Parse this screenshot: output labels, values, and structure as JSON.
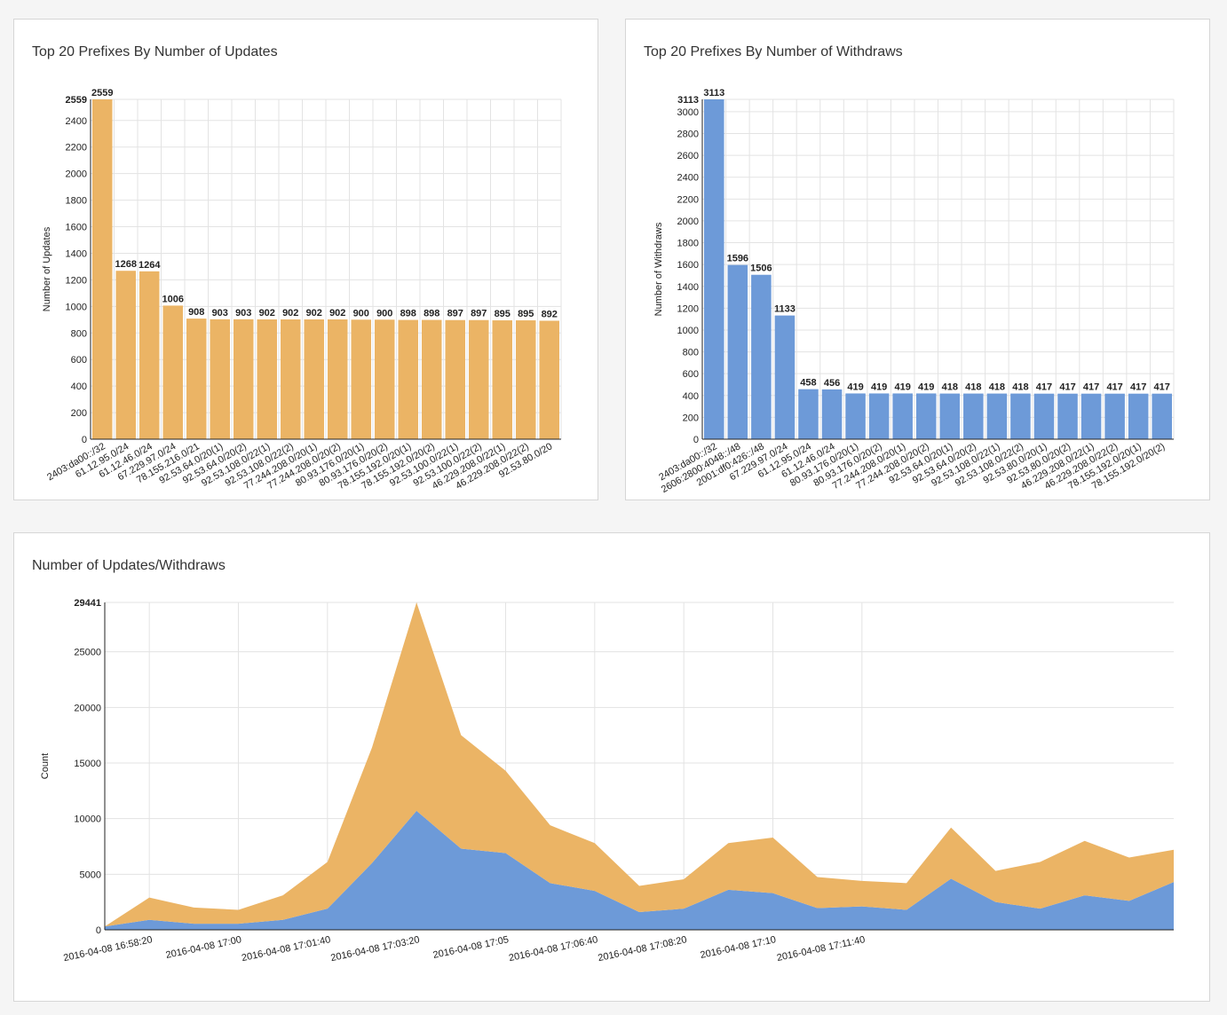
{
  "colors": {
    "updates": "#ebb465",
    "withdraws": "#6d9ad8",
    "grid": "#e3e3e3",
    "axis": "#222222"
  },
  "charts": {
    "updates": {
      "title": "Top 20 Prefixes By Number of Updates",
      "ylabel": "Number of Updates",
      "color_key": "updates",
      "chart_data": {
        "type": "bar",
        "title": "Top 20 Prefixes By Number of Updates",
        "xlabel": "",
        "ylabel": "Number of Updates",
        "ylim": [
          0,
          2559
        ],
        "yticks": [
          0,
          200,
          400,
          600,
          800,
          1000,
          1200,
          1400,
          1600,
          1800,
          2000,
          2200,
          2400,
          2559
        ],
        "categories": [
          "2403:da00::/32",
          "61.12.95.0/24",
          "61.12.46.0/24",
          "67.229.97.0/24",
          "78.155.216.0/21",
          "92.53.64.0/20(1)",
          "92.53.64.0/20(2)",
          "92.53.108.0/22(1)",
          "92.53.108.0/22(2)",
          "77.244.208.0/20(1)",
          "77.244.208.0/20(2)",
          "80.93.176.0/20(1)",
          "80.93.176.0/20(2)",
          "78.155.192.0/20(1)",
          "78.155.192.0/20(2)",
          "92.53.100.0/22(1)",
          "92.53.100.0/22(2)",
          "46.229.208.0/22(1)",
          "46.229.208.0/22(2)",
          "92.53.80.0/20"
        ],
        "values": [
          2559,
          1268,
          1264,
          1006,
          908,
          903,
          903,
          902,
          902,
          902,
          902,
          900,
          900,
          898,
          898,
          897,
          897,
          895,
          895,
          892
        ],
        "grid": true
      }
    },
    "withdraws": {
      "title": "Top 20 Prefixes By Number of Withdraws",
      "ylabel": "Number of Withdraws",
      "color_key": "withdraws",
      "chart_data": {
        "type": "bar",
        "title": "Top 20 Prefixes By Number of Withdraws",
        "xlabel": "",
        "ylabel": "Number of Withdraws",
        "ylim": [
          0,
          3113
        ],
        "yticks": [
          0,
          200,
          400,
          600,
          800,
          1000,
          1200,
          1400,
          1600,
          1800,
          2000,
          2200,
          2400,
          2600,
          2800,
          3000,
          3113
        ],
        "categories": [
          "2403:da00::/32",
          "2606:2800:4048::/48",
          "2001:df0:426::/48",
          "67.229.97.0/24",
          "61.12.95.0/24",
          "61.12.46.0/24",
          "80.93.176.0/20(1)",
          "80.93.176.0/20(2)",
          "77.244.208.0/20(1)",
          "77.244.208.0/20(2)",
          "92.53.64.0/20(1)",
          "92.53.64.0/20(2)",
          "92.53.108.0/22(1)",
          "92.53.108.0/22(2)",
          "92.53.80.0/20(1)",
          "92.53.80.0/20(2)",
          "46.229.208.0/22(1)",
          "46.229.208.0/22(2)",
          "78.155.192.0/20(1)",
          "78.155.192.0/20(2)"
        ],
        "values": [
          3113,
          1596,
          1506,
          1133,
          458,
          456,
          419,
          419,
          419,
          419,
          418,
          418,
          418,
          418,
          417,
          417,
          417,
          417,
          417,
          417
        ],
        "grid": true
      }
    },
    "timeline": {
      "title": "Number of Updates/Withdraws",
      "ylabel": "Count",
      "chart_data": {
        "type": "area",
        "stacked": true,
        "title": "Number of Updates/Withdraws",
        "xlabel": "",
        "ylabel": "Count",
        "ylim": [
          0,
          29441
        ],
        "yticks": [
          0,
          5000,
          10000,
          15000,
          20000,
          25000,
          29441
        ],
        "x": [
          "2016-04-08 16:57:30",
          "2016-04-08 16:58:20",
          "2016-04-08 16:59:10",
          "2016-04-08 17:00:00",
          "2016-04-08 17:00:50",
          "2016-04-08 17:01:40",
          "2016-04-08 17:02:30",
          "2016-04-08 17:03:20",
          "2016-04-08 17:04:10",
          "2016-04-08 17:05:00",
          "2016-04-08 17:05:50",
          "2016-04-08 17:06:40",
          "2016-04-08 17:07:30",
          "2016-04-08 17:08:20",
          "2016-04-08 17:09:10",
          "2016-04-08 17:10:00",
          "2016-04-08 17:10:50",
          "2016-04-08 17:11:40",
          "2016-04-08 17:12:30",
          "2016-04-08 17:13:20",
          "2016-04-08 17:14:10",
          "2016-04-08 17:15:00",
          "2016-04-08 17:15:50",
          "2016-04-08 17:16:40",
          "2016-04-08 17:17:30"
        ],
        "xticks": [
          "2016-04-08 16:58:20",
          "2016-04-08 17:00",
          "2016-04-08 17:01:40",
          "2016-04-08 17:03:20",
          "2016-04-08 17:05",
          "2016-04-08 17:06:40",
          "2016-04-08 17:08:20",
          "2016-04-08 17:10",
          "2016-04-08 17:11:40"
        ],
        "series": [
          {
            "color_key": "withdraws",
            "values": [
              300,
              900,
              550,
              550,
              900,
              1900,
              6000,
              10700,
              7300,
              6900,
              4200,
              3500,
              1600,
              1900,
              3600,
              3300,
              1950,
              2100,
              1800,
              4600,
              2500,
              1900,
              3100,
              2600,
              4300
            ]
          },
          {
            "color_key": "updates",
            "values": [
              0,
              2000,
              1450,
              1250,
              2200,
              4200,
              10400,
              18741,
              10200,
              7400,
              5200,
              4300,
              2350,
              2650,
              4200,
              5000,
              2800,
              2300,
              2400,
              4600,
              2800,
              4200,
              4900,
              3900,
              2900
            ]
          }
        ],
        "grid": true
      }
    }
  }
}
